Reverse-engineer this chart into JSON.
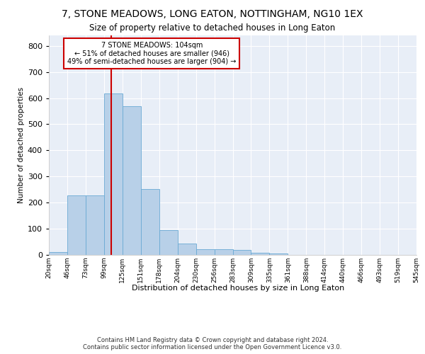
{
  "title": "7, STONE MEADOWS, LONG EATON, NOTTINGHAM, NG10 1EX",
  "subtitle": "Size of property relative to detached houses in Long Eaton",
  "xlabel": "Distribution of detached houses by size in Long Eaton",
  "ylabel": "Number of detached properties",
  "bar_values": [
    11,
    228,
    228,
    617,
    568,
    252,
    95,
    44,
    21,
    21,
    18,
    9,
    5,
    0,
    0,
    0,
    0,
    0,
    0,
    0
  ],
  "bar_labels": [
    "20sqm",
    "46sqm",
    "73sqm",
    "99sqm",
    "125sqm",
    "151sqm",
    "178sqm",
    "204sqm",
    "230sqm",
    "256sqm",
    "283sqm",
    "309sqm",
    "335sqm",
    "361sqm",
    "388sqm",
    "414sqm",
    "440sqm",
    "466sqm",
    "493sqm",
    "519sqm",
    "545sqm"
  ],
  "bar_color": "#b8d0e8",
  "bar_edge_color": "#6aaad4",
  "background_color": "#e8eef7",
  "grid_color": "#ffffff",
  "vline_x": 3.4,
  "vline_color": "#cc0000",
  "annotation_text": "7 STONE MEADOWS: 104sqm\n← 51% of detached houses are smaller (946)\n49% of semi-detached houses are larger (904) →",
  "annotation_box_color": "#ffffff",
  "annotation_box_edge": "#cc0000",
  "ylim": [
    0,
    840
  ],
  "yticks": [
    0,
    100,
    200,
    300,
    400,
    500,
    600,
    700,
    800
  ],
  "footer_line1": "Contains HM Land Registry data © Crown copyright and database right 2024.",
  "footer_line2": "Contains public sector information licensed under the Open Government Licence v3.0."
}
